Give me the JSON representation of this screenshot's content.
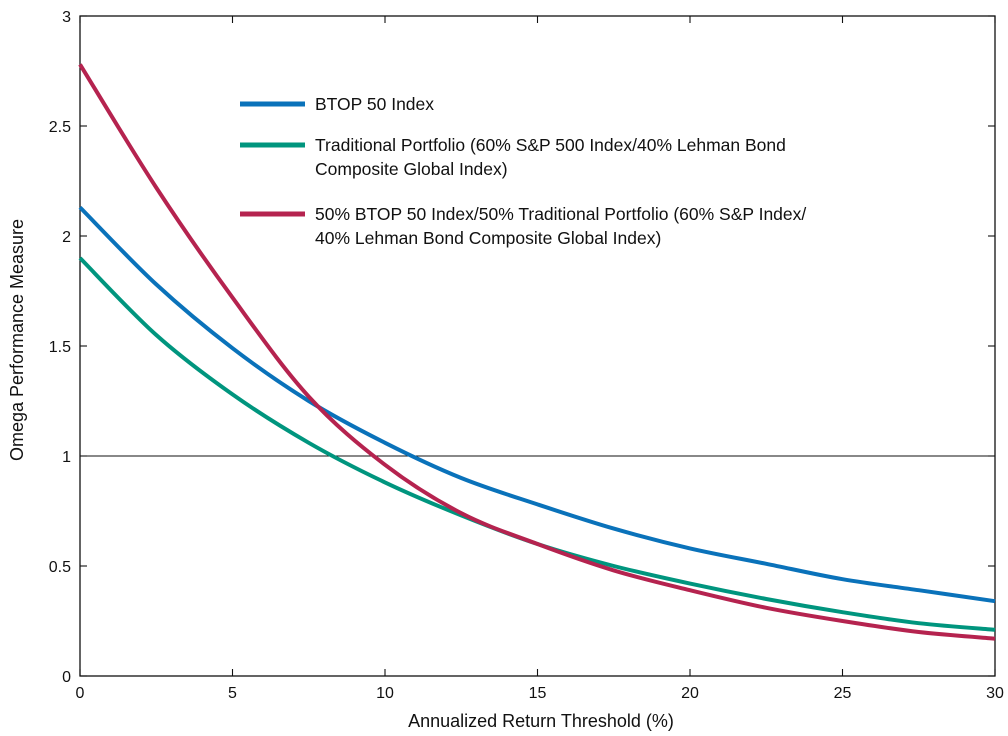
{
  "chart_data": {
    "type": "line",
    "title": "",
    "xlabel": "Annualized Return Threshold (%)",
    "ylabel": "Omega Performance Measure",
    "xlim": [
      0,
      30
    ],
    "ylim": [
      0,
      3
    ],
    "xticks": [
      "0",
      "5",
      "10",
      "15",
      "20",
      "25",
      "30"
    ],
    "yticks": [
      "0",
      "0.5",
      "1",
      "1.5",
      "2",
      "2.5",
      "3"
    ],
    "reference_line_y": 1,
    "grid": false,
    "legend_position": "top-center",
    "x": [
      0,
      2.5,
      5,
      7.5,
      10,
      12.5,
      15,
      17.5,
      20,
      22.5,
      25,
      27.5,
      30
    ],
    "series": [
      {
        "name": "BTOP 50 Index",
        "legend_lines": [
          "BTOP 50 Index"
        ],
        "color": "#0a72ba",
        "values": [
          2.13,
          1.78,
          1.49,
          1.25,
          1.06,
          0.9,
          0.78,
          0.67,
          0.58,
          0.51,
          0.44,
          0.39,
          0.34
        ]
      },
      {
        "name": "Traditional Portfolio (60% S&P 500 Index/40% Lehman Bond Composite Global Index)",
        "legend_lines": [
          "Traditional Portfolio (60% S&P 500 Index/40% Lehman Bond",
          "Composite Global Index)"
        ],
        "color": "#00957e",
        "values": [
          1.9,
          1.55,
          1.28,
          1.06,
          0.88,
          0.73,
          0.6,
          0.5,
          0.42,
          0.35,
          0.29,
          0.24,
          0.21
        ]
      },
      {
        "name": "50% BTOP 50 Index/50% Traditional Portfolio (60% S&P Index/40% Lehman Bond Composite Global Index)",
        "legend_lines": [
          "50% BTOP 50 Index/50% Traditional Portfolio (60% S&P Index/",
          "40% Lehman Bond Composite Global Index)"
        ],
        "color": "#b5234f",
        "values": [
          2.78,
          2.22,
          1.72,
          1.27,
          0.96,
          0.74,
          0.6,
          0.48,
          0.39,
          0.31,
          0.25,
          0.2,
          0.17
        ]
      }
    ]
  }
}
